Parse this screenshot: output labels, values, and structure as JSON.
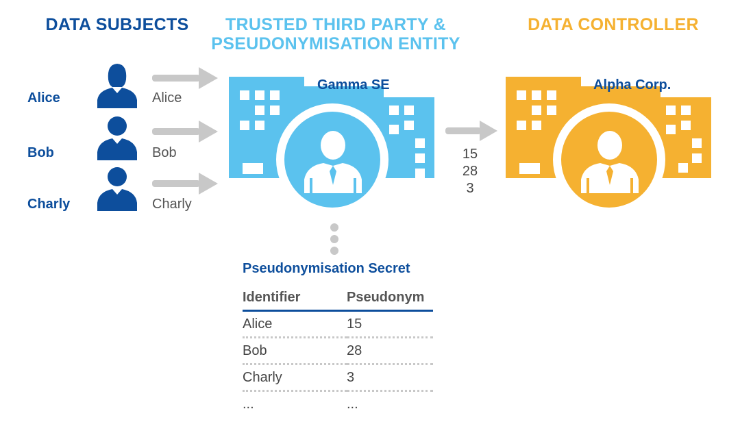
{
  "headings": {
    "data_subjects": "DATA SUBJECTS",
    "ttp_line1": "TRUSTED THIRD PARTY &",
    "ttp_line2": "PSEUDONYMISATION ENTITY",
    "data_controller": "DATA CONTROLLER"
  },
  "subjects": [
    {
      "name": "Alice",
      "label": "Alice"
    },
    {
      "name": "Bob",
      "label": "Bob"
    },
    {
      "name": "Charly",
      "label": "Charly"
    }
  ],
  "ttp": {
    "name": "Gamma SE",
    "color": "#5bc2ee"
  },
  "controller": {
    "name": "Alpha Corp.",
    "color": "#f5b131"
  },
  "pseudonyms_sent": [
    "15",
    "28",
    "3"
  ],
  "secret": {
    "title": "Pseudonymisation Secret",
    "headers": [
      "Identifier",
      "Pseudonym"
    ],
    "rows": [
      [
        "Alice",
        "15"
      ],
      [
        "Bob",
        "28"
      ],
      [
        "Charly",
        "3"
      ],
      [
        "...",
        "..."
      ]
    ]
  },
  "icons": [
    "person-icon",
    "arrow-right-icon",
    "building-icon",
    "businessman-icon",
    "dotted-connector-icon"
  ],
  "colors": {
    "navy": "#0d4e9c",
    "light_blue": "#5bc2ee",
    "orange": "#f5b131",
    "gray_arrow": "#c8c8c8"
  }
}
